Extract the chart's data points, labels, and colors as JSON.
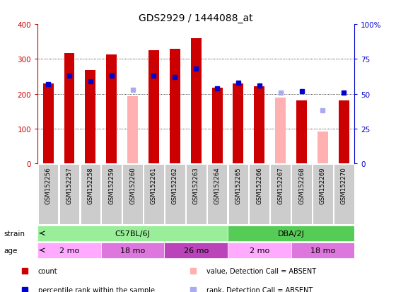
{
  "title": "GDS2929 / 1444088_at",
  "samples": [
    "GSM152256",
    "GSM152257",
    "GSM152258",
    "GSM152259",
    "GSM152260",
    "GSM152261",
    "GSM152262",
    "GSM152263",
    "GSM152264",
    "GSM152265",
    "GSM152266",
    "GSM152267",
    "GSM152268",
    "GSM152269",
    "GSM152270"
  ],
  "count_values": [
    230,
    318,
    268,
    312,
    null,
    325,
    330,
    360,
    218,
    230,
    222,
    null,
    180,
    null,
    180
  ],
  "count_absent": [
    null,
    null,
    null,
    null,
    193,
    null,
    null,
    null,
    null,
    null,
    null,
    188,
    null,
    92,
    null
  ],
  "rank_values": [
    57,
    63,
    59,
    63,
    null,
    63,
    62,
    68,
    54,
    58,
    56,
    null,
    52,
    null,
    51
  ],
  "rank_absent": [
    null,
    null,
    null,
    null,
    53,
    null,
    null,
    null,
    null,
    null,
    null,
    51,
    null,
    38,
    null
  ],
  "ylim_left": [
    0,
    400
  ],
  "ylim_right": [
    0,
    100
  ],
  "yticks_left": [
    0,
    100,
    200,
    300,
    400
  ],
  "yticks_right": [
    0,
    25,
    50,
    75,
    100
  ],
  "strain_labels": [
    {
      "label": "C57BL/6J",
      "start": 0,
      "end": 9
    },
    {
      "label": "DBA/2J",
      "start": 9,
      "end": 15
    }
  ],
  "age_labels": [
    {
      "label": "2 mo",
      "start": 0,
      "end": 3
    },
    {
      "label": "18 mo",
      "start": 3,
      "end": 6
    },
    {
      "label": "26 mo",
      "start": 6,
      "end": 9
    },
    {
      "label": "2 mo",
      "start": 9,
      "end": 12
    },
    {
      "label": "18 mo",
      "start": 12,
      "end": 15
    }
  ],
  "color_count": "#cc0000",
  "color_count_absent": "#ffb0b0",
  "color_rank": "#0000cc",
  "color_rank_absent": "#aaaaee",
  "color_strain_c57": "#99ee99",
  "color_strain_dba": "#55cc55",
  "color_age_1": "#ffaaff",
  "color_age_2": "#dd77dd",
  "color_age_3": "#bb44bb",
  "color_age_4": "#ffaaff",
  "color_age_5": "#dd77dd",
  "background_color": "#ffffff",
  "plot_bg": "#ffffff",
  "tick_label_color_left": "#cc0000",
  "tick_label_color_right": "#0000cc",
  "title_fontsize": 10,
  "bar_width": 0.5
}
